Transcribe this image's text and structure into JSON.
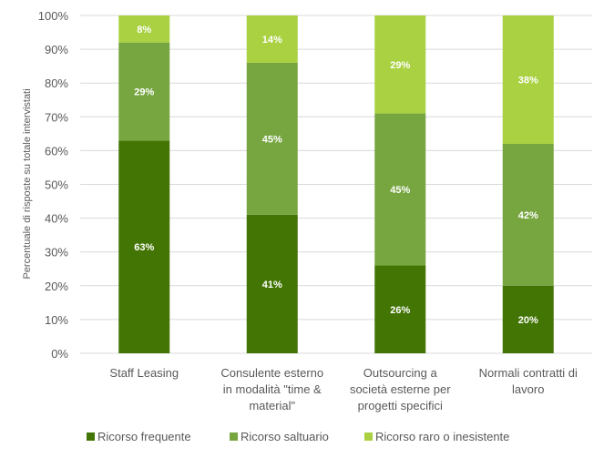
{
  "chart_data": {
    "type": "bar",
    "stacked": true,
    "title": "",
    "xlabel": "",
    "ylabel": "Percentuale di risposte su totale intervistati",
    "ylim": [
      0,
      100
    ],
    "y_ticks": [
      "0%",
      "10%",
      "20%",
      "30%",
      "40%",
      "50%",
      "60%",
      "70%",
      "80%",
      "90%",
      "100%"
    ],
    "grid": true,
    "legend_position": "bottom",
    "categories": [
      [
        "Staff Leasing"
      ],
      [
        "Consulente esterno",
        "in modalità \"time &",
        "material\""
      ],
      [
        "Outsourcing a",
        "società esterne per",
        "progetti specifici"
      ],
      [
        "Normali contratti di",
        "lavoro"
      ]
    ],
    "series": [
      {
        "name": "Ricorso frequente",
        "color": "#437505",
        "values": [
          63,
          41,
          26,
          20
        ],
        "labels": [
          "63%",
          "41%",
          "26%",
          "20%"
        ]
      },
      {
        "name": "Ricorso saltuario",
        "color": "#77A641",
        "values": [
          29,
          45,
          45,
          42
        ],
        "labels": [
          "29%",
          "45%",
          "45%",
          "42%"
        ]
      },
      {
        "name": "Ricorso raro o inesistente",
        "color": "#A9D142",
        "values": [
          8,
          14,
          29,
          38
        ],
        "labels": [
          "8%",
          "14%",
          "29%",
          "38%"
        ]
      }
    ]
  }
}
